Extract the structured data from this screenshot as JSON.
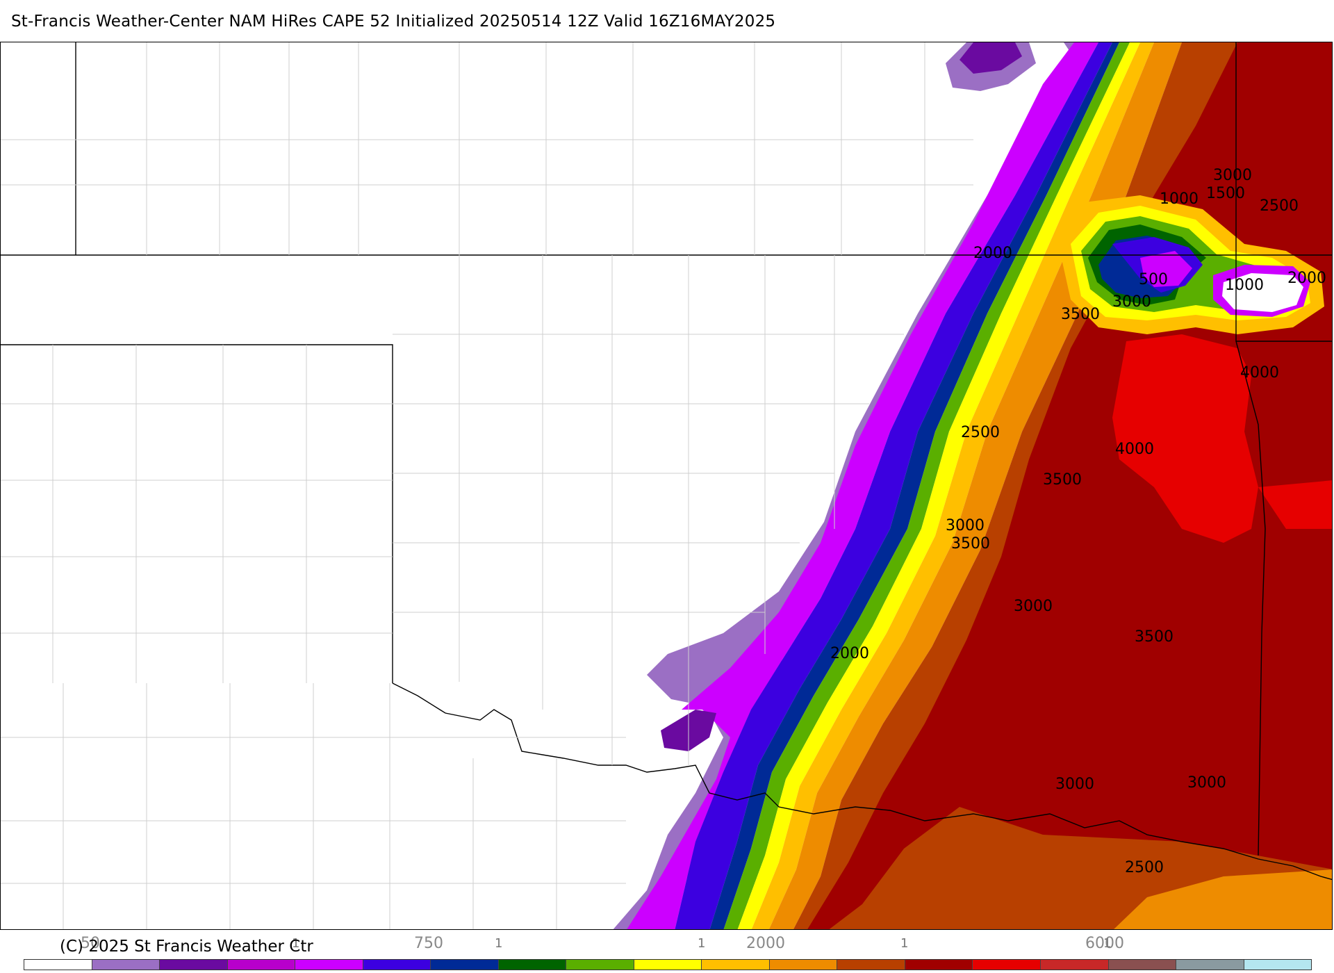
{
  "header": {
    "title": "St-Francis Weather-Center NAM HiRes CAPE  52 Initialized 20250514 12Z Valid 16Z16MAY2025"
  },
  "map": {
    "contour_labels": [
      {
        "text": "3000"
      },
      {
        "text": "1500"
      },
      {
        "text": "1000"
      },
      {
        "text": "2500"
      },
      {
        "text": "2000"
      },
      {
        "text": "500"
      },
      {
        "text": "1000"
      },
      {
        "text": "2000"
      },
      {
        "text": "3000"
      },
      {
        "text": "3500"
      },
      {
        "text": "4000"
      },
      {
        "text": "2500"
      },
      {
        "text": "4000"
      },
      {
        "text": "3500"
      },
      {
        "text": "3000"
      },
      {
        "text": "3500"
      },
      {
        "text": "3000"
      },
      {
        "text": "3500"
      },
      {
        "text": "2000"
      },
      {
        "text": "3000"
      },
      {
        "text": "3000"
      },
      {
        "text": "2500"
      }
    ]
  },
  "legend": {
    "labels": {
      "l50": "50",
      "l750": "750",
      "l2000": "2000",
      "l6000": "6000"
    },
    "tick_glyph": "1",
    "colors": [
      "#ffffff",
      "#9b6fc4",
      "#6a0aa0",
      "#b800cc",
      "#cc00ff",
      "#3c00e0",
      "#002a96",
      "#006400",
      "#5aaf00",
      "#ffff00",
      "#ffbf00",
      "#ee8c00",
      "#b84000",
      "#a00000",
      "#e60000",
      "#c82828",
      "#8a5050",
      "#8a9aa0",
      "#b4e6f0"
    ]
  },
  "footer": {
    "copyright": "(C) 2025 St Francis Weather Ctr"
  }
}
